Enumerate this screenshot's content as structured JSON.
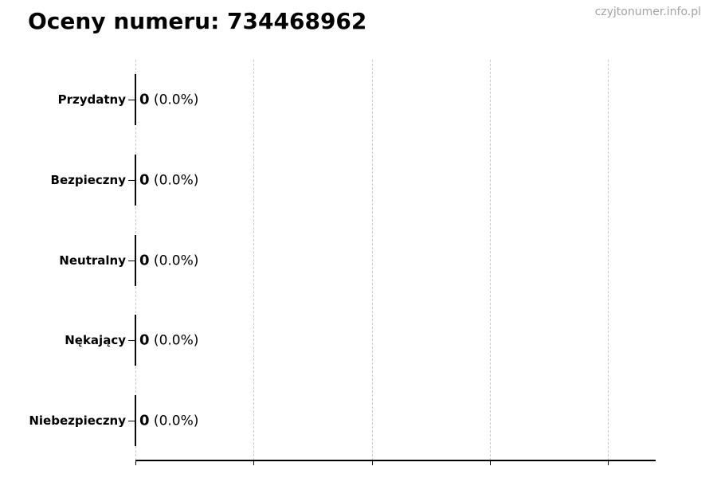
{
  "title": "Oceny numeru: 734468962",
  "watermark": "czyjtonumer.info.pl",
  "colors": {
    "text": "#000000",
    "watermark": "#a3a3a3",
    "gridline": "#cccccc",
    "axis": "#000000",
    "bar": "#0a0a0a"
  },
  "rows": [
    {
      "category": "Przydatny",
      "count_label": "0",
      "percent_label": "(0.0%)"
    },
    {
      "category": "Bezpieczny",
      "count_label": "0",
      "percent_label": "(0.0%)"
    },
    {
      "category": "Neutralny",
      "count_label": "0",
      "percent_label": "(0.0%)"
    },
    {
      "category": "Nękający",
      "count_label": "0",
      "percent_label": "(0.0%)"
    },
    {
      "category": "Niebezpieczny",
      "count_label": "0",
      "percent_label": "(0.0%)"
    }
  ],
  "chart_data": {
    "type": "bar",
    "orientation": "horizontal",
    "title": "Oceny numeru: 734468962",
    "categories": [
      "Przydatny",
      "Bezpieczny",
      "Neutralny",
      "Nękający",
      "Niebezpieczny"
    ],
    "values": [
      0,
      0,
      0,
      0,
      0
    ],
    "percentages": [
      0.0,
      0.0,
      0.0,
      0.0,
      0.0
    ],
    "value_labels": [
      "0 (0.0%)",
      "0 (0.0%)",
      "0 (0.0%)",
      "0 (0.0%)",
      "0 (0.0%)"
    ],
    "xlabel": "",
    "ylabel": "",
    "xlim": [
      0,
      1
    ],
    "grid": true,
    "gridline_count": 5,
    "legend": false,
    "x_tick_labels_visible": false
  }
}
